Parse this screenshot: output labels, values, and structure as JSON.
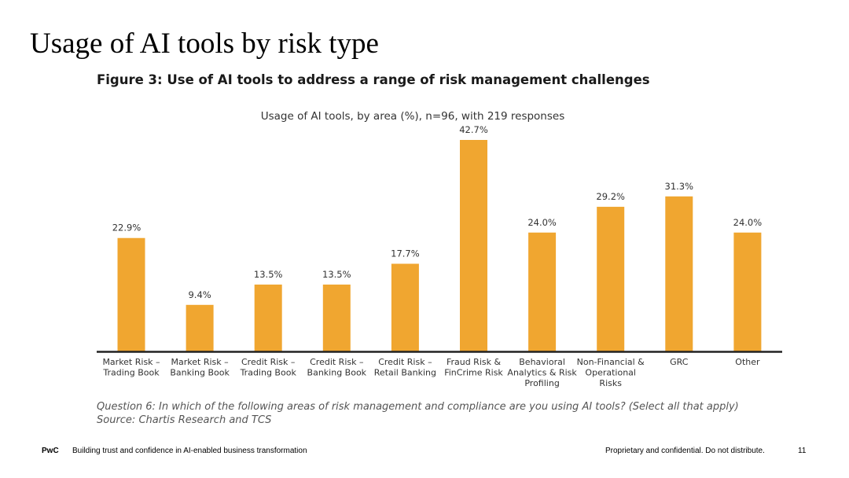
{
  "slide": {
    "title": "Usage of AI tools by risk type",
    "figure_title": "Figure 3: Use of AI tools to address a range of risk management challenges",
    "question": "Question 6: In which of the following areas of risk management and compliance are you using AI tools? (Select all that apply)",
    "source": "Source: Chartis Research and TCS"
  },
  "footer": {
    "brand": "PwC",
    "tagline": "Building trust and confidence in AI-enabled business transformation",
    "confidential": "Proprietary and confidential. Do not distribute.",
    "page": "11"
  },
  "chart_data": {
    "type": "bar",
    "title": "Usage of AI tools, by area (%), n=96, with 219 responses",
    "categories": [
      [
        "Market Risk –",
        "Trading Book"
      ],
      [
        "Market Risk –",
        "Banking Book"
      ],
      [
        "Credit Risk –",
        "Trading Book"
      ],
      [
        "Credit Risk –",
        "Banking Book"
      ],
      [
        "Credit Risk –",
        "Retail Banking"
      ],
      [
        "Fraud Risk &",
        "FinCrime Risk"
      ],
      [
        "Behavioral",
        "Analytics & Risk",
        "Profiling"
      ],
      [
        "Non-Financial &",
        "Operational",
        "Risks"
      ],
      [
        "GRC"
      ],
      [
        "Other"
      ]
    ],
    "values": [
      22.9,
      9.4,
      13.5,
      13.5,
      17.7,
      42.7,
      24.0,
      29.2,
      31.3,
      24.0
    ],
    "value_labels": [
      "22.9%",
      "9.4%",
      "13.5%",
      "13.5%",
      "17.7%",
      "42.7%",
      "24.0%",
      "29.2%",
      "31.3%",
      "24.0%"
    ],
    "ylim": [
      0,
      42.7
    ],
    "grid": false,
    "legend": "none",
    "bar_color": "#f0a630"
  }
}
